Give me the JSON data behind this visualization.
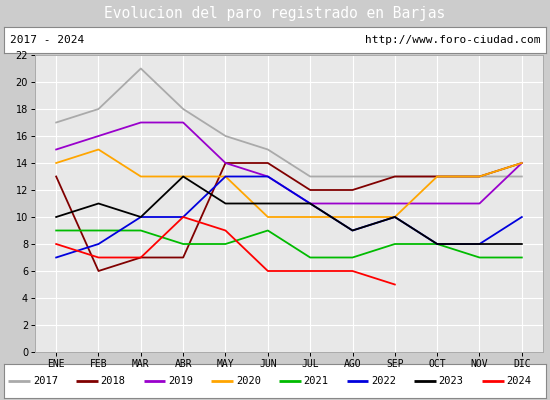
{
  "title": "Evolucion del paro registrado en Barjas",
  "subtitle_left": "2017 - 2024",
  "subtitle_right": "http://www.foro-ciudad.com",
  "months": [
    "ENE",
    "FEB",
    "MAR",
    "ABR",
    "MAY",
    "JUN",
    "JUL",
    "AGO",
    "SEP",
    "OCT",
    "NOV",
    "DIC"
  ],
  "series": {
    "2017": {
      "color": "#aaaaaa",
      "data": [
        17,
        18,
        21,
        18,
        16,
        15,
        13,
        13,
        13,
        13,
        13,
        13
      ]
    },
    "2018": {
      "color": "#800000",
      "data": [
        13,
        6,
        7,
        7,
        14,
        14,
        12,
        12,
        13,
        13,
        13,
        14
      ]
    },
    "2019": {
      "color": "#9900cc",
      "data": [
        15,
        16,
        17,
        17,
        14,
        13,
        11,
        11,
        11,
        11,
        11,
        14
      ]
    },
    "2020": {
      "color": "#ffa500",
      "data": [
        14,
        15,
        13,
        13,
        13,
        10,
        10,
        10,
        10,
        13,
        13,
        14
      ]
    },
    "2021": {
      "color": "#00bb00",
      "data": [
        9,
        9,
        9,
        8,
        8,
        9,
        7,
        7,
        8,
        8,
        7,
        7
      ]
    },
    "2022": {
      "color": "#0000dd",
      "data": [
        7,
        8,
        10,
        10,
        13,
        13,
        11,
        9,
        10,
        8,
        8,
        10
      ]
    },
    "2023": {
      "color": "#000000",
      "data": [
        10,
        11,
        10,
        13,
        11,
        11,
        11,
        9,
        10,
        8,
        8,
        8
      ]
    },
    "2024": {
      "color": "#ff0000",
      "data": [
        8,
        7,
        7,
        10,
        9,
        6,
        6,
        6,
        5,
        null,
        null,
        null
      ]
    }
  },
  "ylim": [
    0,
    22
  ],
  "yticks": [
    0,
    2,
    4,
    6,
    8,
    10,
    12,
    14,
    16,
    18,
    20,
    22
  ],
  "bg_color": "#cccccc",
  "plot_bg_color": "#e8e8e8",
  "title_bg_color": "#5b8dd9",
  "title_text_color": "#ffffff",
  "header_bg_color": "#ffffff",
  "legend_years": [
    "2017",
    "2018",
    "2019",
    "2020",
    "2021",
    "2022",
    "2023",
    "2024"
  ]
}
